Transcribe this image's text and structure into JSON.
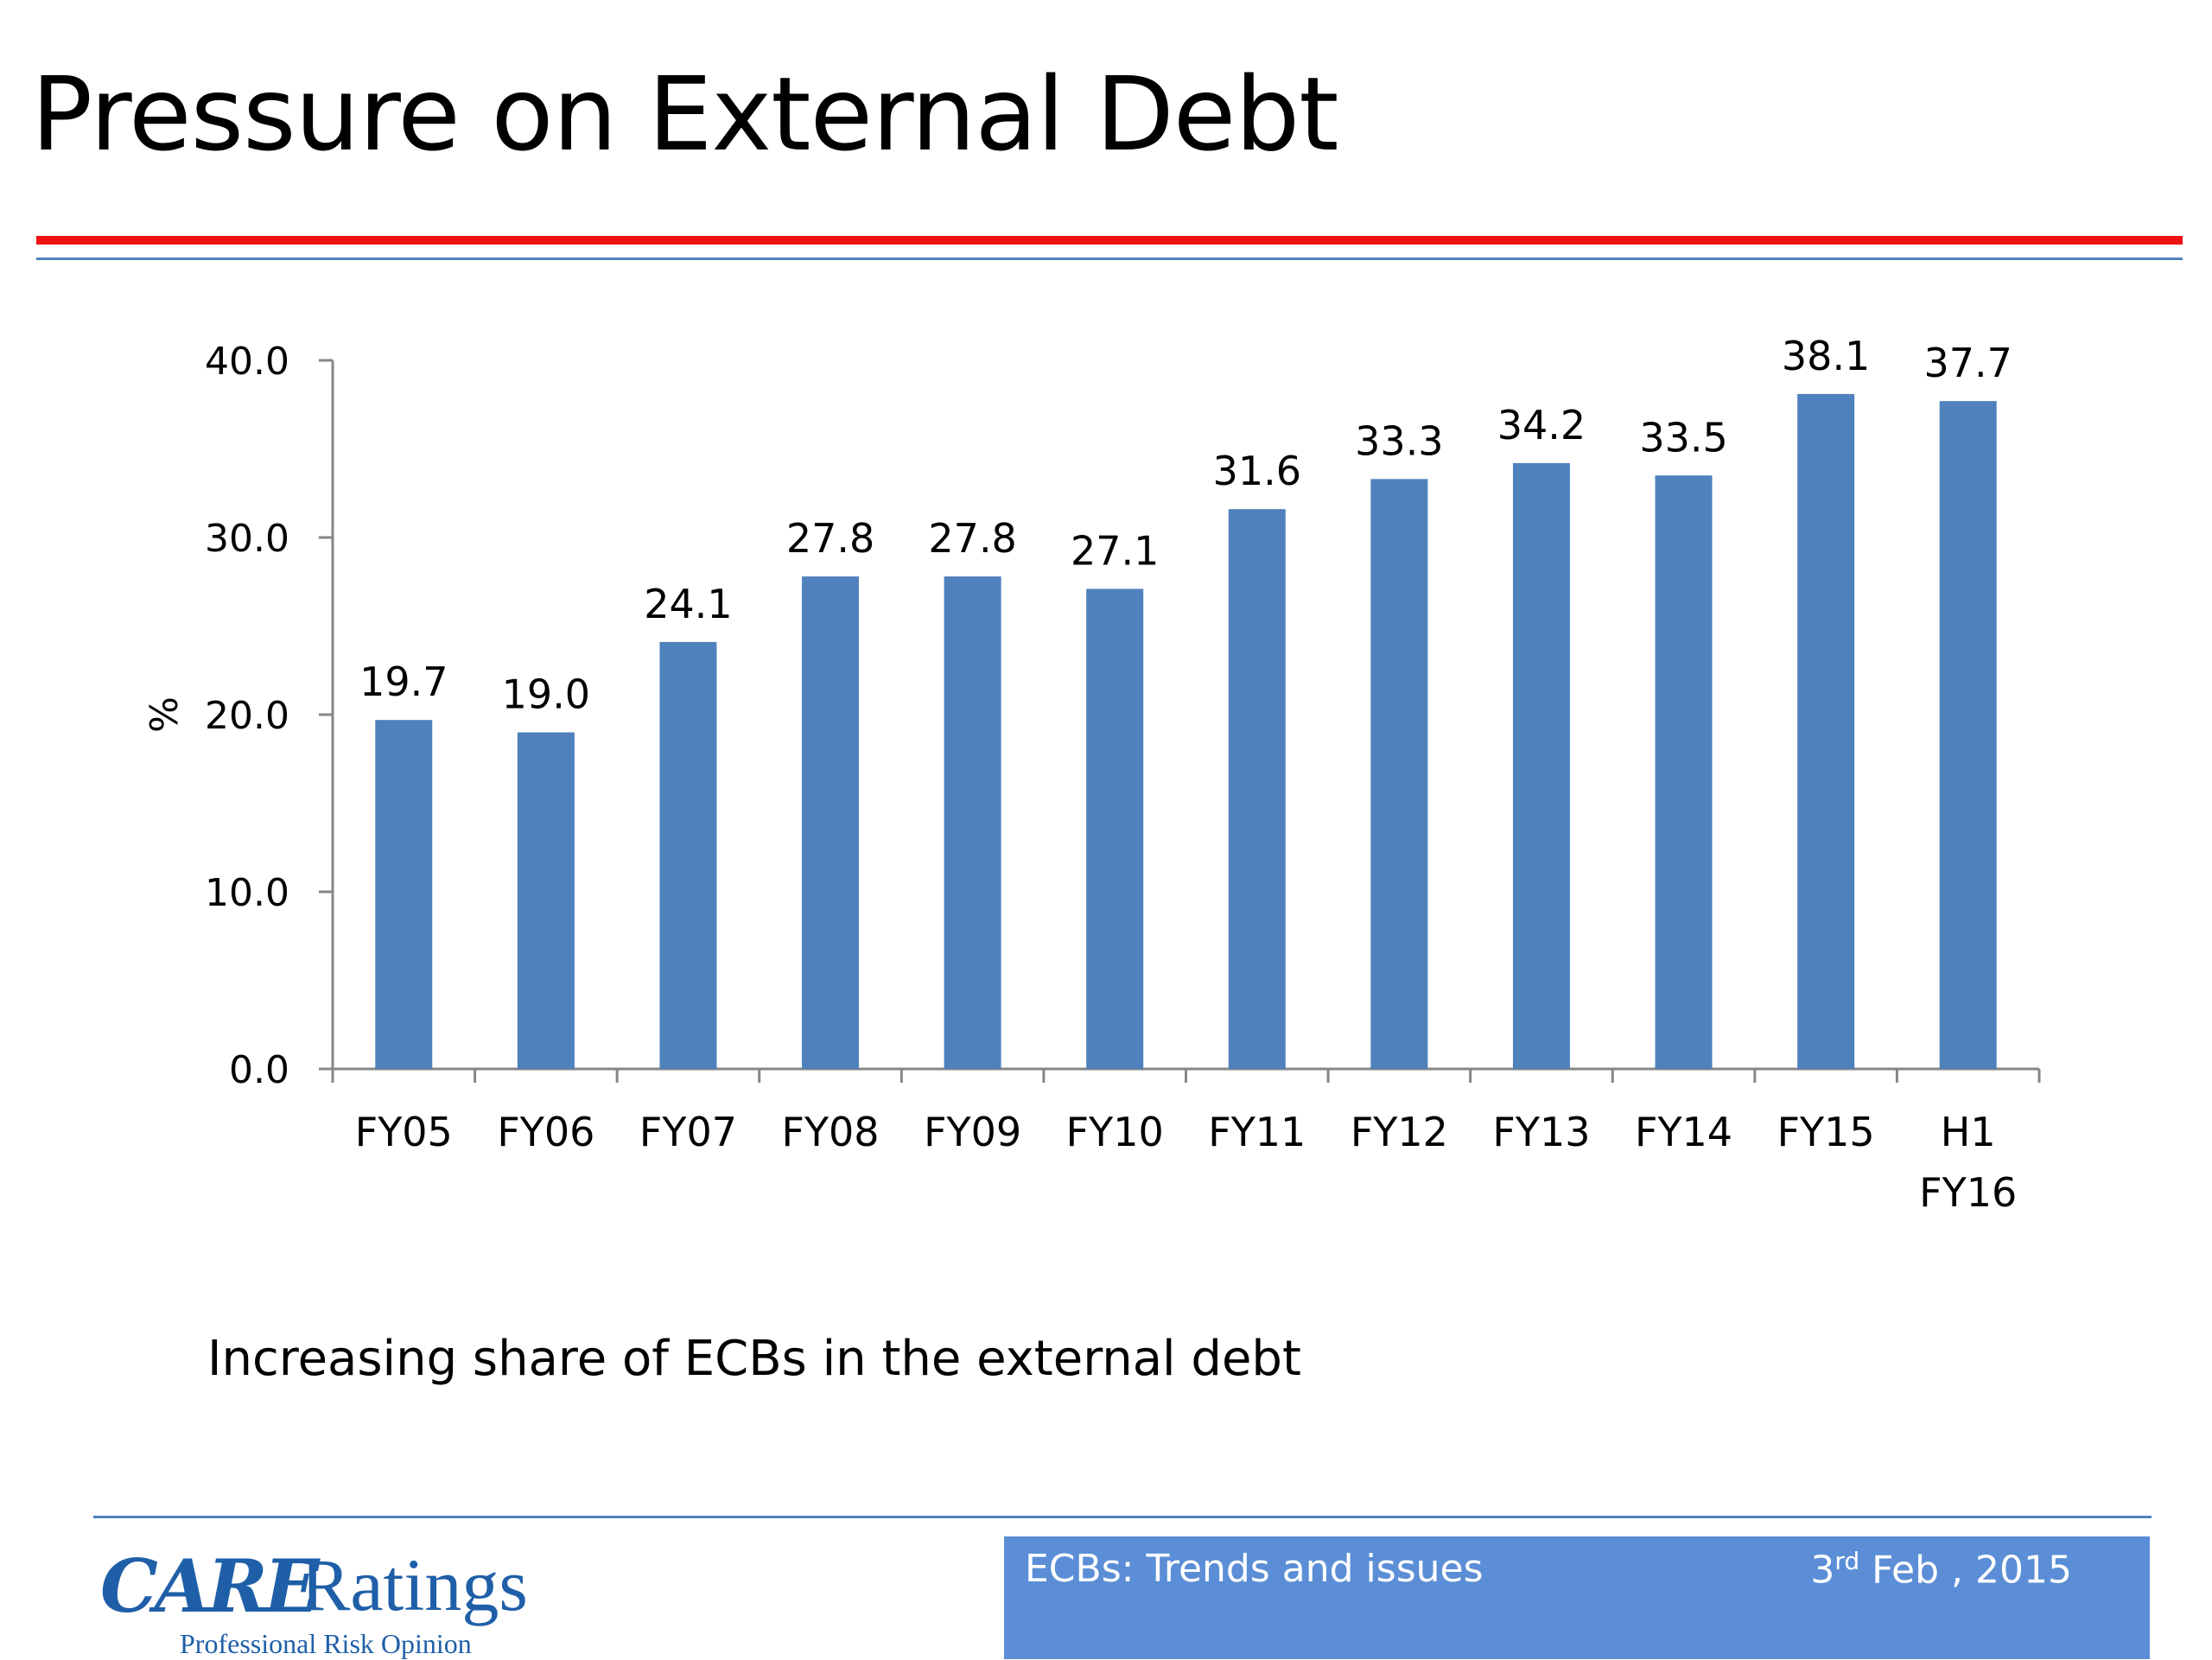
{
  "slide": {
    "title": "Pressure on External Debt",
    "caption": "Increasing share of ECBs in the external debt"
  },
  "footer": {
    "logo_mark": "CARE",
    "logo_word": "Ratings",
    "logo_tagline": "Professional Risk Opinion",
    "left_text": "ECBs: Trends and issues",
    "date_day": "3",
    "date_suffix": "rd",
    "date_rest": " Feb , 2015"
  },
  "colors": {
    "bar": "#4f81bd",
    "title_rule": "#ee1111",
    "accent_rule": "#4f81bd",
    "footer_bar": "#5b8ed6"
  },
  "chart_data": {
    "type": "bar",
    "categories": [
      "FY05",
      "FY06",
      "FY07",
      "FY08",
      "FY09",
      "FY10",
      "FY11",
      "FY12",
      "FY13",
      "FY14",
      "FY15",
      "H1 FY16"
    ],
    "category_lines": [
      [
        "FY05"
      ],
      [
        "FY06"
      ],
      [
        "FY07"
      ],
      [
        "FY08"
      ],
      [
        "FY09"
      ],
      [
        "FY10"
      ],
      [
        "FY11"
      ],
      [
        "FY12"
      ],
      [
        "FY13"
      ],
      [
        "FY14"
      ],
      [
        "FY15"
      ],
      [
        "H1",
        "FY16"
      ]
    ],
    "values": [
      19.7,
      19.0,
      24.1,
      27.8,
      27.8,
      27.1,
      31.6,
      33.3,
      34.2,
      33.5,
      38.1,
      37.7
    ],
    "value_labels": [
      "19.7",
      "19.0",
      "24.1",
      "27.8",
      "27.8",
      "27.1",
      "31.6",
      "33.3",
      "34.2",
      "33.5",
      "38.1",
      "37.7"
    ],
    "ylabel": "%",
    "ylim": [
      0,
      40
    ],
    "yticks": [
      0,
      10,
      20,
      30,
      40
    ],
    "ytick_labels": [
      "0.0",
      "10.0",
      "20.0",
      "30.0",
      "40.0"
    ],
    "grid": false,
    "legend": "none"
  }
}
